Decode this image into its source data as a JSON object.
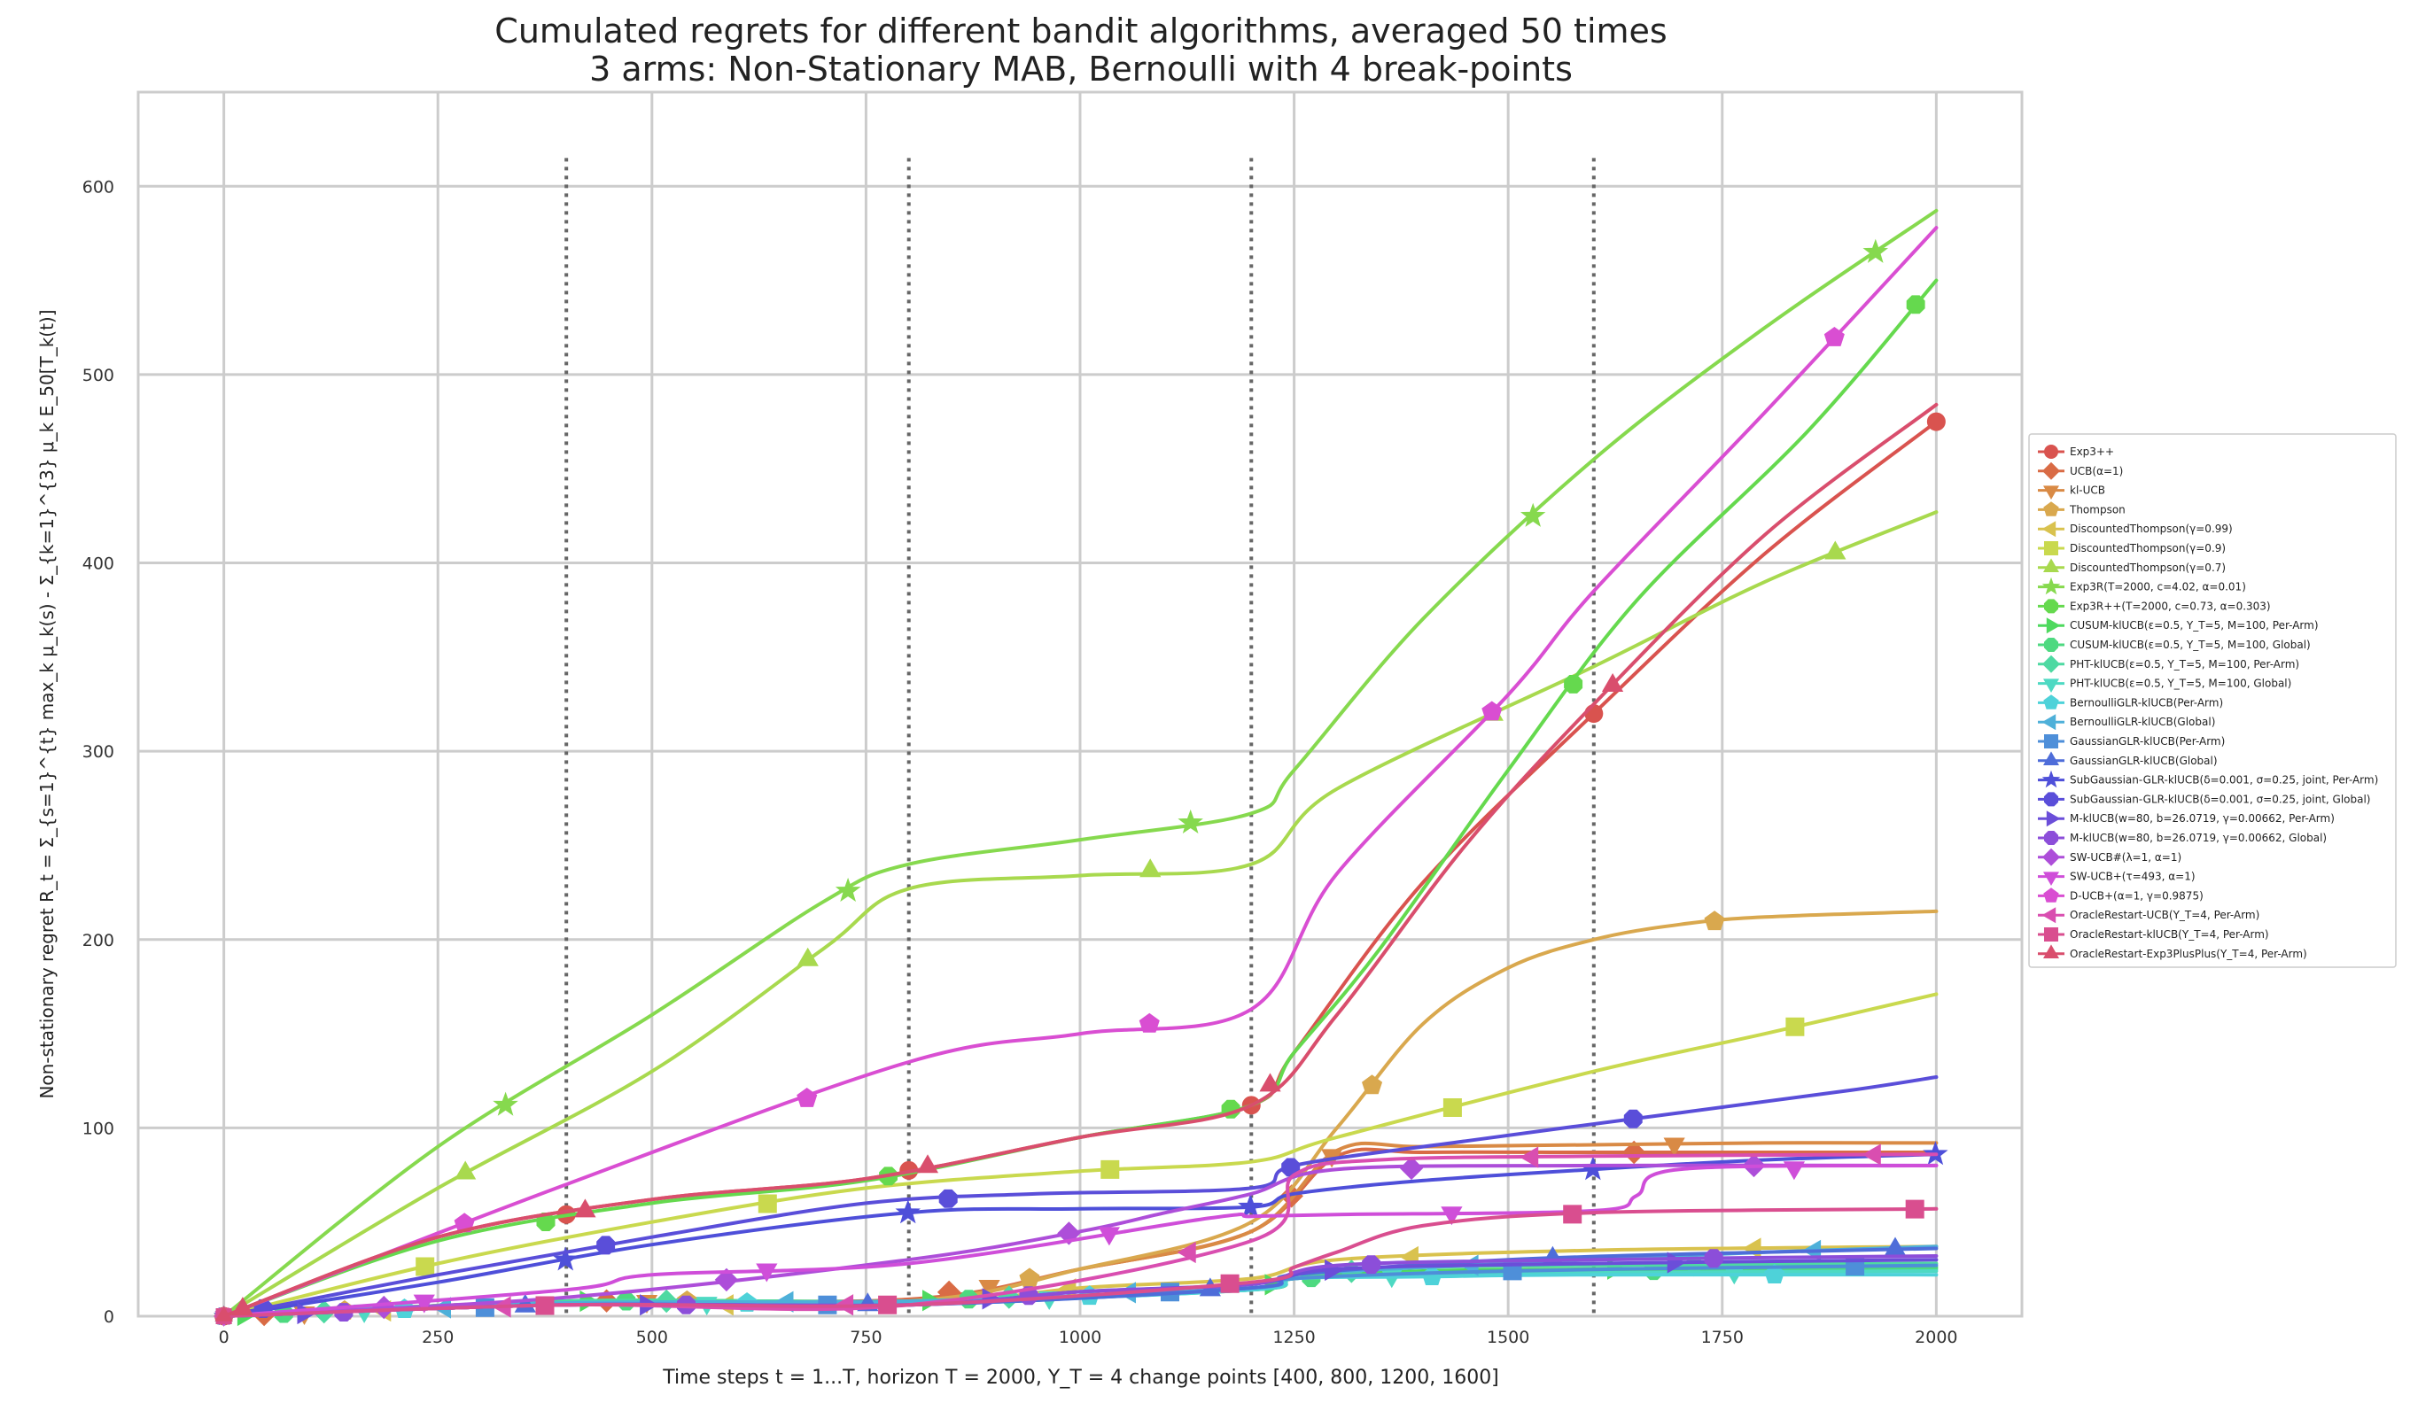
{
  "chart_data": {
    "type": "line",
    "title": "Cumulated regrets for different bandit algorithms, averaged 50 times",
    "subtitle": "3 arms: Non-Stationary MAB, Bernoulli with 4 break-points",
    "xlabel": "Time steps t = 1...T, horizon T = 2000, Υ_T = 4 change points [400, 800, 1200, 1600]",
    "ylabel": "Non-stationary regret R_t = Σ_{s=1}^{t} max_k μ_k(s) - Σ_{k=1}^{3} μ_k E_50[T_k(t)]",
    "xlim": [
      -100,
      2100
    ],
    "ylim": [
      0,
      650
    ],
    "xticks": [
      0,
      250,
      500,
      750,
      1000,
      1250,
      1500,
      1750,
      2000
    ],
    "yticks": [
      0,
      100,
      200,
      300,
      400,
      500,
      600
    ],
    "grid": true,
    "legend_position": "right",
    "change_points": [
      400,
      800,
      1200,
      1600
    ],
    "series": [
      {
        "name": "Exp3++",
        "color": "#d9534f",
        "marker": "circle",
        "x": [
          0,
          250,
          500,
          750,
          1000,
          1200,
          1250,
          1400,
          1600,
          1800,
          2000
        ],
        "y": [
          0,
          42,
          62,
          73,
          95,
          112,
          140,
          230,
          320,
          405,
          475
        ]
      },
      {
        "name": "UCB(α=1)",
        "color": "#d96b45",
        "marker": "diamond",
        "x": [
          0,
          400,
          800,
          1000,
          1200,
          1300,
          1400,
          1600,
          1800,
          2000
        ],
        "y": [
          0,
          8,
          9,
          25,
          45,
          85,
          87,
          87,
          87,
          87
        ]
      },
      {
        "name": "kl-UCB",
        "color": "#d98a45",
        "marker": "triangle-down",
        "x": [
          0,
          400,
          800,
          1000,
          1200,
          1300,
          1400,
          1600,
          1800,
          2000
        ],
        "y": [
          0,
          8,
          8,
          25,
          45,
          88,
          90,
          91,
          92,
          92
        ]
      },
      {
        "name": "Thompson",
        "color": "#d9a84e",
        "marker": "pentagon",
        "x": [
          0,
          400,
          800,
          1000,
          1200,
          1300,
          1400,
          1500,
          1600,
          1700,
          1800,
          2000
        ],
        "y": [
          0,
          8,
          8,
          25,
          50,
          100,
          155,
          185,
          200,
          208,
          212,
          215
        ]
      },
      {
        "name": "DiscountedThompson(γ=0.99)",
        "color": "#d9c24e",
        "marker": "triangle-left",
        "x": [
          0,
          400,
          800,
          1000,
          1200,
          1300,
          1600,
          2000
        ],
        "y": [
          0,
          6,
          6,
          15,
          20,
          30,
          35,
          37
        ]
      },
      {
        "name": "DiscountedThompson(γ=0.9)",
        "color": "#c9d94e",
        "marker": "square",
        "x": [
          0,
          250,
          500,
          750,
          1000,
          1200,
          1300,
          1600,
          1800,
          2000
        ],
        "y": [
          0,
          28,
          50,
          68,
          77,
          82,
          95,
          130,
          150,
          171
        ]
      },
      {
        "name": "DiscountedThompson(γ=0.7)",
        "color": "#a8d94e",
        "marker": "triangle-up",
        "x": [
          0,
          250,
          500,
          700,
          800,
          1000,
          1200,
          1300,
          1600,
          1800,
          2000
        ],
        "y": [
          0,
          68,
          130,
          195,
          227,
          234,
          240,
          280,
          345,
          390,
          427
        ]
      },
      {
        "name": "Exp3R(T=2000, c=4.02, α=0.01)",
        "color": "#86d94e",
        "marker": "star",
        "x": [
          0,
          250,
          500,
          700,
          800,
          1000,
          1200,
          1250,
          1400,
          1600,
          1800,
          2000
        ],
        "y": [
          0,
          90,
          160,
          220,
          240,
          253,
          267,
          290,
          370,
          455,
          525,
          587
        ]
      },
      {
        "name": "Exp3R++(T=2000, c=0.73, α=0.303)",
        "color": "#65d94e",
        "marker": "octagon",
        "x": [
          0,
          250,
          500,
          750,
          1000,
          1200,
          1250,
          1350,
          1500,
          1650,
          1850,
          2000
        ],
        "y": [
          0,
          40,
          60,
          72,
          95,
          112,
          140,
          195,
          290,
          380,
          470,
          550
        ]
      },
      {
        "name": "CUSUM-klUCB(ε=0.5, Υ_T=5, M=100, Per-Arm)",
        "color": "#4ed95e",
        "marker": "triangle-right",
        "x": [
          0,
          400,
          800,
          1200,
          1250,
          1400,
          1600,
          2000
        ],
        "y": [
          0,
          8,
          8,
          14,
          20,
          24,
          25,
          26
        ]
      },
      {
        "name": "CUSUM-klUCB(ε=0.5, Υ_T=5, M=100, Global)",
        "color": "#4ed980",
        "marker": "octagon",
        "x": [
          0,
          400,
          800,
          1200,
          1250,
          1400,
          1600,
          2000
        ],
        "y": [
          0,
          8,
          8,
          14,
          20,
          23,
          24,
          25
        ]
      },
      {
        "name": "PHT-klUCB(ε=0.5, Υ_T=5, M=100, Per-Arm)",
        "color": "#4ed9a2",
        "marker": "diamond",
        "x": [
          0,
          400,
          800,
          1200,
          1250,
          1400,
          1600,
          2000
        ],
        "y": [
          0,
          8,
          8,
          15,
          22,
          26,
          27,
          28
        ]
      },
      {
        "name": "PHT-klUCB(ε=0.5, Υ_T=5, M=100, Global)",
        "color": "#4ed9c3",
        "marker": "triangle-down",
        "x": [
          0,
          400,
          800,
          1200,
          1250,
          1400,
          1600,
          2000
        ],
        "y": [
          0,
          7,
          7,
          14,
          20,
          22,
          23,
          24
        ]
      },
      {
        "name": "BernoulliGLR-klUCB(Per-Arm)",
        "color": "#4ed2d9",
        "marker": "pentagon",
        "x": [
          0,
          400,
          800,
          1200,
          1250,
          1400,
          1600,
          2000
        ],
        "y": [
          0,
          7,
          7,
          14,
          20,
          21,
          22,
          22
        ]
      },
      {
        "name": "BernoulliGLR-klUCB(Global)",
        "color": "#4eb0d9",
        "marker": "triangle-left",
        "x": [
          0,
          400,
          800,
          1200,
          1250,
          1500,
          1800,
          2000
        ],
        "y": [
          0,
          7,
          8,
          15,
          22,
          28,
          34,
          37
        ]
      },
      {
        "name": "GaussianGLR-klUCB(Per-Arm)",
        "color": "#4e8fd9",
        "marker": "square",
        "x": [
          0,
          400,
          800,
          1200,
          1250,
          1500,
          1800,
          2000
        ],
        "y": [
          0,
          6,
          6,
          15,
          20,
          24,
          26,
          27
        ]
      },
      {
        "name": "GaussianGLR-klUCB(Global)",
        "color": "#4e6dd9",
        "marker": "triangle-up",
        "x": [
          0,
          400,
          800,
          1200,
          1250,
          1500,
          1800,
          2000
        ],
        "y": [
          0,
          6,
          6,
          15,
          22,
          30,
          34,
          36
        ]
      },
      {
        "name": "SubGaussian-GLR-klUCB(δ=0.001, σ=0.25, joint, Per-Arm)",
        "color": "#4e4fd9",
        "marker": "star",
        "x": [
          0,
          250,
          500,
          800,
          1000,
          1200,
          1250,
          1400,
          1600,
          1800,
          2000
        ],
        "y": [
          0,
          18,
          38,
          55,
          57,
          58,
          65,
          72,
          78,
          83,
          86
        ]
      },
      {
        "name": "SubGaussian-GLR-klUCB(δ=0.001, σ=0.25, joint, Global)",
        "color": "#5a4ed9",
        "marker": "octagon",
        "x": [
          0,
          250,
          500,
          750,
          950,
          1200,
          1250,
          1450,
          1700,
          1900,
          2000
        ],
        "y": [
          0,
          22,
          42,
          60,
          65,
          68,
          80,
          93,
          108,
          120,
          127
        ]
      },
      {
        "name": "M-klUCB(w=80, b=26.0719, γ=0.00662, Per-Arm)",
        "color": "#6b4ed9",
        "marker": "triangle-right",
        "x": [
          0,
          400,
          800,
          1000,
          1200,
          1300,
          1600,
          2000
        ],
        "y": [
          0,
          6,
          6,
          13,
          17,
          25,
          28,
          30
        ]
      },
      {
        "name": "M-klUCB(w=80, b=26.0719, γ=0.00662, Global)",
        "color": "#8c4ed9",
        "marker": "octagon",
        "x": [
          0,
          400,
          800,
          1000,
          1200,
          1300,
          1600,
          2000
        ],
        "y": [
          0,
          6,
          6,
          13,
          17,
          27,
          30,
          32
        ]
      },
      {
        "name": "SW-UCB#(λ=1, α=1)",
        "color": "#ad4ed9",
        "marker": "diamond",
        "x": [
          0,
          400,
          800,
          1000,
          1100,
          1200,
          1300,
          1600,
          2000
        ],
        "y": [
          0,
          10,
          30,
          45,
          55,
          65,
          78,
          80,
          80
        ]
      },
      {
        "name": "SW-UCB+(τ=493, α=1)",
        "color": "#cf4ed9",
        "marker": "triangle-down",
        "x": [
          0,
          400,
          500,
          800,
          1150,
          1200,
          1300,
          1600,
          1650,
          1700,
          2000
        ],
        "y": [
          0,
          14,
          22,
          28,
          52,
          53,
          54,
          56,
          64,
          78,
          80
        ]
      },
      {
        "name": "D-UCB+(α=1, γ=0.9875)",
        "color": "#d94ed2",
        "marker": "pentagon",
        "x": [
          0,
          400,
          800,
          1000,
          1200,
          1300,
          1500,
          1600,
          1800,
          2000
        ],
        "y": [
          0,
          70,
          135,
          150,
          163,
          235,
          330,
          385,
          480,
          578
        ]
      },
      {
        "name": "OracleRestart-UCB(Υ_T=4, Per-Arm)",
        "color": "#d94eb0",
        "marker": "triangle-left",
        "x": [
          0,
          400,
          800,
          1200,
          1250,
          1350,
          1600,
          2000
        ],
        "y": [
          0,
          6,
          6,
          40,
          75,
          83,
          85,
          86
        ]
      },
      {
        "name": "OracleRestart-klUCB(Υ_T=4, Per-Arm)",
        "color": "#d94e8f",
        "marker": "square",
        "x": [
          0,
          400,
          800,
          1200,
          1250,
          1300,
          1400,
          1600,
          2000
        ],
        "y": [
          0,
          6,
          6,
          18,
          26,
          34,
          48,
          55,
          57
        ]
      },
      {
        "name": "OracleRestart-Exp3PlusPlus(Υ_T=4, Per-Arm)",
        "color": "#d94e6d",
        "marker": "triangle-up",
        "x": [
          0,
          250,
          500,
          750,
          1000,
          1200,
          1300,
          1450,
          1600,
          1800,
          2000
        ],
        "y": [
          0,
          42,
          62,
          73,
          95,
          112,
          160,
          250,
          325,
          415,
          484
        ]
      }
    ]
  }
}
